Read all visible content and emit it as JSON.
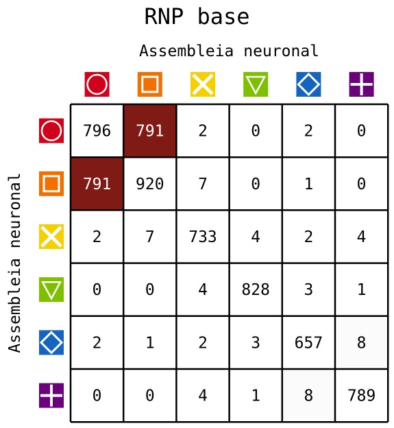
{
  "chart_data": {
    "type": "heatmap",
    "title": "RNP base",
    "xlabel": "Assembleia neuronal",
    "ylabel": "Assembleia neuronal",
    "categories": [
      {
        "icon": "circle-icon",
        "color": "#d0021b"
      },
      {
        "icon": "square-icon",
        "color": "#f07000"
      },
      {
        "icon": "x-cross-icon",
        "color": "#f5d000"
      },
      {
        "icon": "triangle-down-icon",
        "color": "#7ec000"
      },
      {
        "icon": "diamond-icon",
        "color": "#1565c0"
      },
      {
        "icon": "plus-icon",
        "color": "#6a007a"
      }
    ],
    "matrix": [
      [
        796,
        791,
        2,
        0,
        2,
        0
      ],
      [
        791,
        920,
        7,
        0,
        1,
        0
      ],
      [
        2,
        7,
        733,
        4,
        2,
        4
      ],
      [
        0,
        0,
        4,
        828,
        3,
        1
      ],
      [
        2,
        1,
        2,
        3,
        657,
        8
      ],
      [
        0,
        0,
        4,
        1,
        8,
        789
      ]
    ],
    "highlight_color": "#7f1a14",
    "highlighted_cells": [
      [
        0,
        1
      ],
      [
        1,
        0
      ]
    ],
    "faint_cells": [
      [
        4,
        5
      ],
      [
        5,
        4
      ]
    ],
    "faint_color": "#fbfbfb",
    "grid": true,
    "legend": "none"
  }
}
